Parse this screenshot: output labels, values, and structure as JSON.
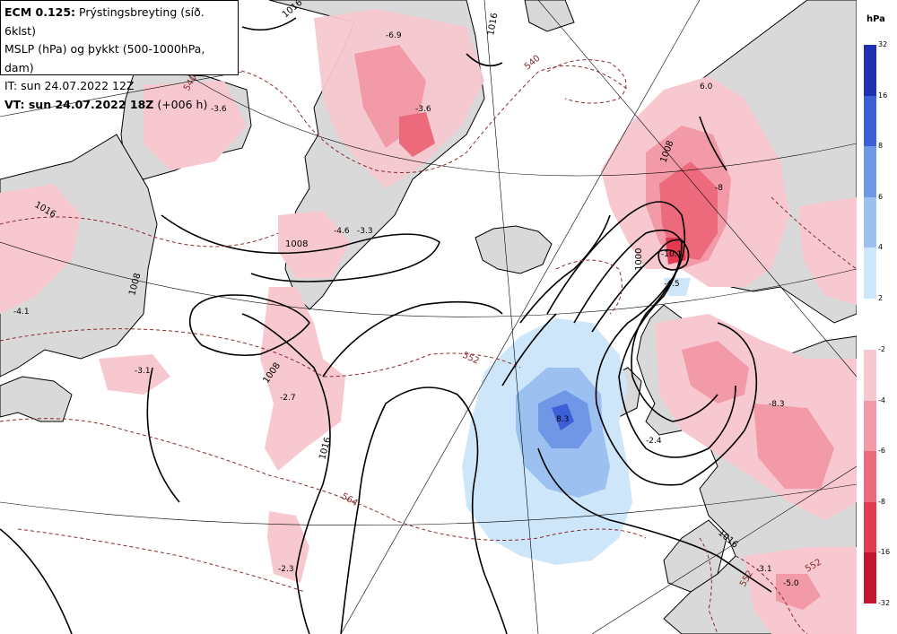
{
  "header": {
    "model_bold": "ECM 0.125:",
    "model_rest": " Prýstingsbreyting (síð. 6klst)",
    "line2": "MSLP (hPa) og þykkt (500-1000hPa, dam)",
    "line3": "IT: sun 24.07.2022 12Z",
    "line4_bold": "VT: sun 24.07.2022 18Z",
    "line4_rest": " (+006 h)"
  },
  "legend": {
    "unit": "hPa",
    "positive": [
      {
        "label": "32",
        "color": "#1f2fb5"
      },
      {
        "label": "16",
        "color": "#3a5fd6"
      },
      {
        "label": "8",
        "color": "#6f97e6"
      },
      {
        "label": "6",
        "color": "#9cc0f0"
      },
      {
        "label": "4",
        "color": "#cde6fa"
      },
      {
        "label": "2",
        "color": ""
      }
    ],
    "negative": [
      {
        "label": "-2",
        "color": "#f7c8d0"
      },
      {
        "label": "-4",
        "color": "#f29aa8"
      },
      {
        "label": "-6",
        "color": "#ec6a7c"
      },
      {
        "label": "-8",
        "color": "#e23a4e"
      },
      {
        "label": "-16",
        "color": "#c4162c"
      },
      {
        "label": "-32",
        "color": "#8a1a24"
      }
    ]
  },
  "map_labels": {
    "pressure_change": [
      "-6.9",
      "-3.6",
      "-3.6",
      "-4.6",
      "-3.3",
      "-4.1",
      "-3.1",
      "-2.7",
      "-2.3",
      "8.3",
      "-10.1",
      "-4.5",
      "-8",
      "-2.4",
      "-8.3",
      "-3.1",
      "-5.0",
      "6.0"
    ],
    "isobars": [
      "1016",
      "1016",
      "1008",
      "1008",
      "1008",
      "1016",
      "1008",
      "1000",
      "1016",
      "1016"
    ],
    "thickness": [
      "540",
      "540",
      "552",
      "564",
      "552",
      "552"
    ]
  }
}
